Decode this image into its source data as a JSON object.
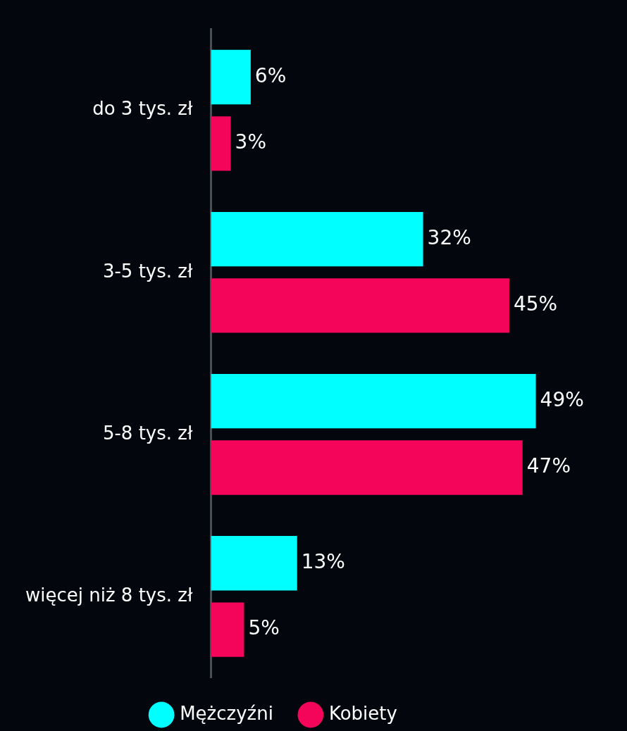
{
  "chart_data": {
    "type": "bar",
    "orientation": "horizontal",
    "categories": [
      "do 3 tys. zł",
      "3-5 tys. zł",
      "5-8 tys. zł",
      "więcej niż 8 tys. zł"
    ],
    "series": [
      {
        "name": "Mężczyźni",
        "color": "#00ffff",
        "values": [
          6,
          32,
          49,
          13
        ],
        "value_labels": [
          "6%",
          "32%",
          "49%",
          "13%"
        ]
      },
      {
        "name": "Kobiety",
        "color": "#f5055a",
        "values": [
          3,
          45,
          47,
          5
        ],
        "value_labels": [
          "3%",
          "45%",
          "47%",
          "5%"
        ]
      }
    ],
    "legend": "bottom"
  }
}
